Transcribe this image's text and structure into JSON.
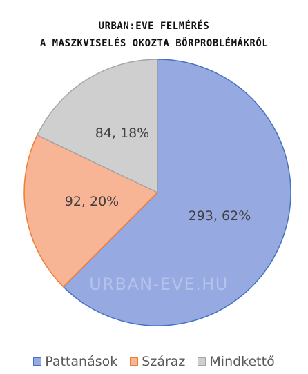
{
  "chart_data": {
    "type": "pie",
    "title": [
      "URBAN:EVE FELMÉRÉS",
      "A MASZKVISELÉS OKOZTA BŐRPROBLÉMÁKRÓL"
    ],
    "watermark": "URBAN-EVE.HU",
    "legend_position": "bottom",
    "slices": [
      {
        "name": "Pattanások",
        "value": 293,
        "percent": 62,
        "label": "293, 62%",
        "fill": "#96A9E0",
        "stroke": "#4472C4"
      },
      {
        "name": "Száraz",
        "value": 92,
        "percent": 20,
        "label": "92, 20%",
        "fill": "#F8B596",
        "stroke": "#ED7D31"
      },
      {
        "name": "Mindkettő",
        "value": 84,
        "percent": 18,
        "label": "84, 18%",
        "fill": "#CFCFCF",
        "stroke": "#A5A5A5"
      }
    ]
  }
}
